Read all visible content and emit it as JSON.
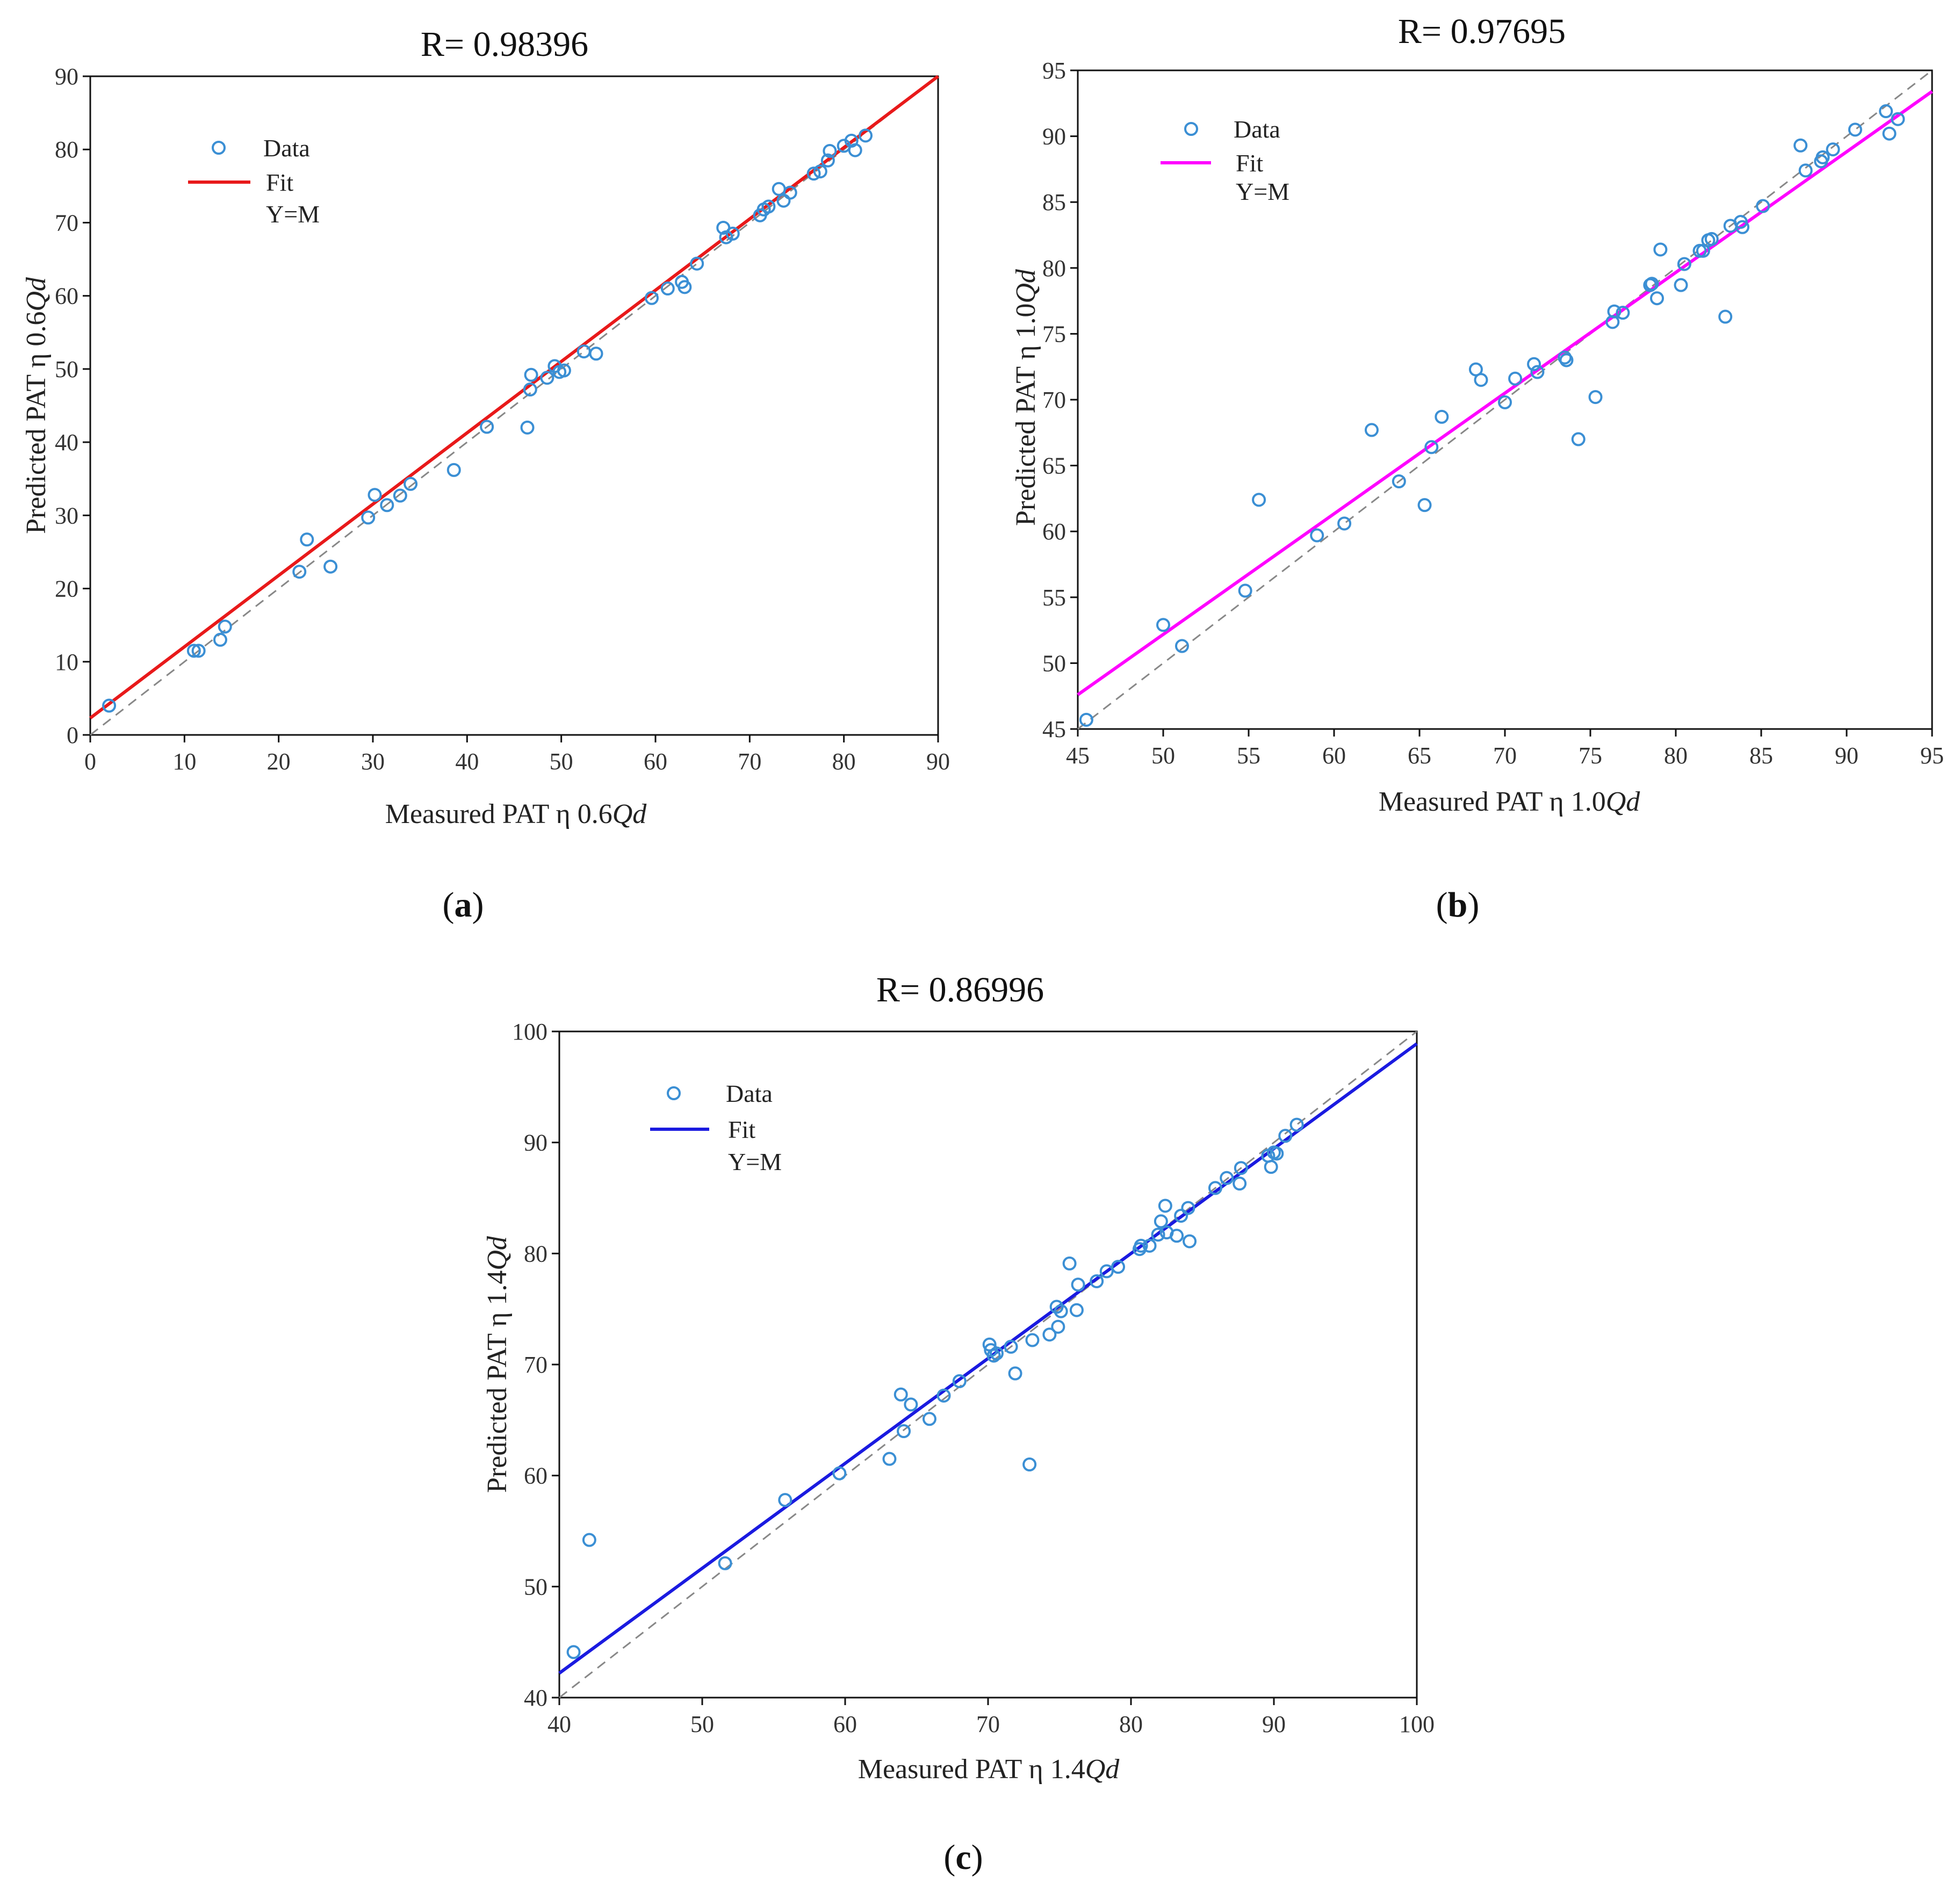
{
  "chart_data": [
    {
      "panel": "a",
      "type": "scatter",
      "title": "R= 0.98396",
      "xlabel_prefix": "Measured PAT η 0.6",
      "xlabel_italic": "Qd",
      "ylabel_prefix": "Predicted PAT η 0.6",
      "ylabel_italic": "Qd",
      "xlim": [
        0,
        90
      ],
      "ylim": [
        0,
        90
      ],
      "xticks": [
        0,
        10,
        20,
        30,
        40,
        50,
        60,
        70,
        80,
        90
      ],
      "yticks": [
        0,
        10,
        20,
        30,
        40,
        50,
        60,
        70,
        80,
        90
      ],
      "legend": {
        "data": "Data",
        "fit": "Fit",
        "ref": "Y=M"
      },
      "fit_color": "#e8191a",
      "marker_color": "#3b8fd4",
      "fit_line": {
        "x": [
          0,
          90
        ],
        "y": [
          2.3,
          90
        ]
      },
      "points": [
        [
          2,
          4
        ],
        [
          11,
          11.5
        ],
        [
          11.5,
          11.5
        ],
        [
          13.8,
          13
        ],
        [
          14.3,
          14.8
        ],
        [
          22.2,
          22.3
        ],
        [
          23,
          26.7
        ],
        [
          25.5,
          23
        ],
        [
          29.5,
          29.7
        ],
        [
          30.2,
          32.8
        ],
        [
          31.5,
          31.4
        ],
        [
          32.9,
          32.7
        ],
        [
          34,
          34.3
        ],
        [
          38.6,
          36.2
        ],
        [
          42.1,
          42.1
        ],
        [
          46.4,
          42
        ],
        [
          46.7,
          47.2
        ],
        [
          46.8,
          49.2
        ],
        [
          48.5,
          48.8
        ],
        [
          49.3,
          50.4
        ],
        [
          49.8,
          49.6
        ],
        [
          50.3,
          49.8
        ],
        [
          52.4,
          52.4
        ],
        [
          53.7,
          52.1
        ],
        [
          59.6,
          59.7
        ],
        [
          61.3,
          61
        ],
        [
          62.8,
          61.9
        ],
        [
          63.1,
          61.2
        ],
        [
          64.4,
          64.4
        ],
        [
          67.2,
          69.3
        ],
        [
          67.5,
          68
        ],
        [
          68.2,
          68.5
        ],
        [
          71.1,
          71
        ],
        [
          71.5,
          71.8
        ],
        [
          72,
          72.2
        ],
        [
          73.1,
          74.6
        ],
        [
          73.6,
          73
        ],
        [
          74.3,
          74.1
        ],
        [
          76.8,
          76.7
        ],
        [
          77.5,
          77
        ],
        [
          78.3,
          78.5
        ],
        [
          78.5,
          79.8
        ],
        [
          80,
          80.5
        ],
        [
          80.8,
          81.2
        ],
        [
          81.2,
          79.9
        ],
        [
          82.3,
          81.9
        ]
      ]
    },
    {
      "panel": "b",
      "type": "scatter",
      "title": "R= 0.97695",
      "xlabel_prefix": "Measured PAT η 1.0",
      "xlabel_italic": "Qd",
      "ylabel_prefix": "Predicted PAT η 1.0",
      "ylabel_italic": "Qd",
      "xlim": [
        45,
        95
      ],
      "ylim": [
        45,
        95
      ],
      "xticks": [
        45,
        50,
        55,
        60,
        65,
        70,
        75,
        80,
        85,
        90,
        95
      ],
      "yticks": [
        45,
        50,
        55,
        60,
        65,
        70,
        75,
        80,
        85,
        90,
        95
      ],
      "legend": {
        "data": "Data",
        "fit": "Fit",
        "ref": "Y=M"
      },
      "fit_color": "#ff00ff",
      "marker_color": "#3b8fd4",
      "fit_line": {
        "x": [
          45,
          95
        ],
        "y": [
          47.6,
          93.4
        ]
      },
      "points": [
        [
          45.5,
          45.7
        ],
        [
          50,
          52.9
        ],
        [
          51.1,
          51.3
        ],
        [
          54.8,
          55.5
        ],
        [
          55.6,
          62.4
        ],
        [
          59,
          59.7
        ],
        [
          60.6,
          60.6
        ],
        [
          62.2,
          67.7
        ],
        [
          63.8,
          63.8
        ],
        [
          65.3,
          62
        ],
        [
          65.7,
          66.4
        ],
        [
          66.3,
          68.7
        ],
        [
          68.3,
          72.3
        ],
        [
          68.6,
          71.5
        ],
        [
          70,
          69.8
        ],
        [
          70.6,
          71.6
        ],
        [
          71.7,
          72.7
        ],
        [
          71.9,
          72.1
        ],
        [
          73.5,
          73.2
        ],
        [
          73.6,
          73
        ],
        [
          74.3,
          67
        ],
        [
          75.3,
          70.2
        ],
        [
          76.3,
          75.9
        ],
        [
          76.4,
          76.7
        ],
        [
          76.9,
          76.6
        ],
        [
          78.5,
          78.7
        ],
        [
          78.6,
          78.8
        ],
        [
          78.9,
          77.7
        ],
        [
          79.1,
          81.4
        ],
        [
          80.3,
          78.7
        ],
        [
          80.5,
          80.3
        ],
        [
          81.4,
          81.3
        ],
        [
          81.6,
          81.3
        ],
        [
          81.9,
          82.1
        ],
        [
          82.1,
          82.2
        ],
        [
          82.9,
          76.3
        ],
        [
          83.2,
          83.2
        ],
        [
          83.8,
          83.5
        ],
        [
          83.9,
          83.1
        ],
        [
          85.1,
          84.7
        ],
        [
          87.3,
          89.3
        ],
        [
          87.6,
          87.4
        ],
        [
          88.5,
          88.1
        ],
        [
          88.6,
          88.4
        ],
        [
          89.2,
          89
        ],
        [
          90.5,
          90.5
        ],
        [
          92.3,
          91.9
        ],
        [
          92.5,
          90.2
        ],
        [
          93,
          91.3
        ]
      ]
    },
    {
      "panel": "c",
      "type": "scatter",
      "title": "R= 0.86996",
      "xlabel_prefix": "Measured PAT η 1.4",
      "xlabel_italic": "Qd",
      "ylabel_prefix": "Predicted PAT η 1.4",
      "ylabel_italic": "Qd",
      "xlim": [
        40,
        100
      ],
      "ylim": [
        40,
        100
      ],
      "xticks": [
        40,
        50,
        60,
        70,
        80,
        90,
        100
      ],
      "yticks": [
        40,
        50,
        60,
        70,
        80,
        90,
        100
      ],
      "legend": {
        "data": "Data",
        "fit": "Fit",
        "ref": "Y=M"
      },
      "fit_color": "#1a1ae0",
      "marker_color": "#3b8fd4",
      "fit_line": {
        "x": [
          40,
          100
        ],
        "y": [
          42.2,
          98.9
        ]
      },
      "points": [
        [
          41,
          44.1
        ],
        [
          42.1,
          54.2
        ],
        [
          51.6,
          52.1
        ],
        [
          55.8,
          57.8
        ],
        [
          59.6,
          60.2
        ],
        [
          63.1,
          61.5
        ],
        [
          63.9,
          67.3
        ],
        [
          64.1,
          64
        ],
        [
          64.6,
          66.4
        ],
        [
          65.9,
          65.1
        ],
        [
          66.9,
          67.2
        ],
        [
          68,
          68.5
        ],
        [
          70.1,
          71.8
        ],
        [
          70.2,
          71.3
        ],
        [
          70.4,
          70.8
        ],
        [
          70.6,
          71
        ],
        [
          71.6,
          71.6
        ],
        [
          71.9,
          69.2
        ],
        [
          72.9,
          61
        ],
        [
          73.1,
          72.2
        ],
        [
          74.3,
          72.7
        ],
        [
          74.8,
          75.2
        ],
        [
          74.9,
          73.4
        ],
        [
          75.1,
          74.8
        ],
        [
          75.7,
          79.1
        ],
        [
          76.2,
          74.9
        ],
        [
          76.3,
          77.2
        ],
        [
          77.6,
          77.5
        ],
        [
          78.3,
          78.4
        ],
        [
          79.1,
          78.8
        ],
        [
          80.6,
          80.4
        ],
        [
          80.7,
          80.7
        ],
        [
          81.3,
          80.7
        ],
        [
          81.9,
          81.7
        ],
        [
          82.1,
          82.9
        ],
        [
          82.4,
          84.3
        ],
        [
          82.5,
          81.9
        ],
        [
          83.2,
          81.6
        ],
        [
          83.5,
          83.4
        ],
        [
          84,
          84.1
        ],
        [
          84.1,
          81.1
        ],
        [
          85.9,
          85.9
        ],
        [
          86.7,
          86.8
        ],
        [
          87.6,
          86.3
        ],
        [
          87.7,
          87.7
        ],
        [
          89.6,
          88.8
        ],
        [
          89.8,
          87.8
        ],
        [
          90,
          89.1
        ],
        [
          90.2,
          89
        ],
        [
          90.8,
          90.6
        ],
        [
          91.6,
          91.6
        ]
      ]
    }
  ],
  "captions": [
    {
      "open": "(",
      "letter": "a",
      "close": ")"
    },
    {
      "open": "(",
      "letter": "b",
      "close": ")"
    },
    {
      "open": "(",
      "letter": "c",
      "close": ")"
    }
  ]
}
